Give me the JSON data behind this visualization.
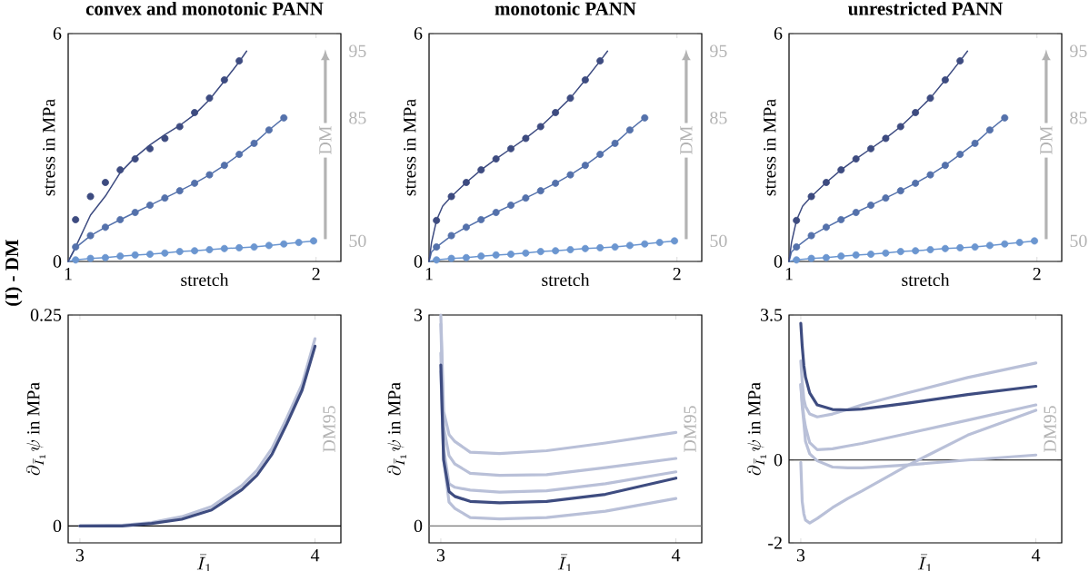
{
  "chart_data": [
    {
      "type": "line",
      "title": "convex and monotonic PANN",
      "xlabel": "stretch",
      "ylabel": "stress in MPa",
      "xlim": [
        1,
        2.1
      ],
      "xticks": [
        1,
        2
      ],
      "ylim": [
        0,
        6
      ],
      "yticks": [
        0,
        6
      ],
      "annotations": [
        "(I) - DM",
        "DM"
      ],
      "series": [
        {
          "type": "line",
          "name": "50",
          "color": "#6b96d0",
          "x": [
            1,
            1.03,
            1.09,
            1.15,
            1.21,
            1.27,
            1.33,
            1.39,
            1.45,
            1.51,
            1.57,
            1.63,
            1.69,
            1.75,
            1.81,
            1.87,
            1.93,
            1.99
          ],
          "values": [
            0,
            0.04,
            0.08,
            0.1,
            0.14,
            0.17,
            0.19,
            0.22,
            0.26,
            0.28,
            0.31,
            0.34,
            0.36,
            0.38,
            0.42,
            0.46,
            0.5,
            0.54
          ]
        },
        {
          "type": "scatter",
          "color": "#6b96d0",
          "x": [
            1.03,
            1.09,
            1.15,
            1.21,
            1.27,
            1.33,
            1.39,
            1.45,
            1.51,
            1.57,
            1.63,
            1.69,
            1.75,
            1.81,
            1.87,
            1.93,
            1.99
          ],
          "values": [
            0.04,
            0.08,
            0.1,
            0.14,
            0.17,
            0.19,
            0.22,
            0.26,
            0.28,
            0.31,
            0.34,
            0.36,
            0.38,
            0.42,
            0.46,
            0.5,
            0.54
          ]
        },
        {
          "type": "line",
          "name": "85",
          "color": "#5471ab",
          "x": [
            1,
            1.03,
            1.09,
            1.15,
            1.21,
            1.27,
            1.33,
            1.39,
            1.45,
            1.51,
            1.57,
            1.63,
            1.69,
            1.75,
            1.81,
            1.87
          ],
          "values": [
            0,
            0.36,
            0.68,
            0.9,
            1.1,
            1.29,
            1.48,
            1.67,
            1.86,
            2.06,
            2.28,
            2.53,
            2.82,
            3.11,
            3.46,
            3.78
          ]
        },
        {
          "type": "scatter",
          "color": "#5471ab",
          "x": [
            1.03,
            1.09,
            1.15,
            1.21,
            1.27,
            1.33,
            1.39,
            1.45,
            1.51,
            1.57,
            1.63,
            1.69,
            1.75,
            1.81,
            1.87
          ],
          "values": [
            0.38,
            0.68,
            0.9,
            1.1,
            1.29,
            1.48,
            1.67,
            1.86,
            2.06,
            2.28,
            2.53,
            2.82,
            3.11,
            3.46,
            3.78
          ]
        },
        {
          "type": "line",
          "name": "95",
          "color": "#3d4b80",
          "x": [
            1,
            1.03,
            1.09,
            1.15,
            1.21,
            1.27,
            1.33,
            1.39,
            1.45,
            1.51,
            1.57,
            1.63,
            1.69,
            1.72
          ],
          "values": [
            0,
            0.38,
            1.22,
            1.72,
            2.34,
            2.74,
            3.07,
            3.34,
            3.58,
            3.87,
            4.26,
            4.75,
            5.26,
            5.54
          ]
        },
        {
          "type": "scatter",
          "color": "#3d4b80",
          "x": [
            1.03,
            1.09,
            1.15,
            1.21,
            1.27,
            1.33,
            1.39,
            1.45,
            1.51,
            1.57,
            1.63,
            1.69
          ],
          "values": [
            1.1,
            1.71,
            2.08,
            2.41,
            2.7,
            2.97,
            3.24,
            3.55,
            3.92,
            4.3,
            4.78,
            5.28
          ]
        }
      ]
    },
    {
      "type": "line",
      "title": "monotonic PANN",
      "xlabel": "stretch",
      "ylabel": "stress in MPa",
      "xlim": [
        1,
        2.1
      ],
      "xticks": [
        1,
        2
      ],
      "ylim": [
        0,
        6
      ],
      "yticks": [
        0,
        6
      ],
      "annotations": [
        "DM"
      ],
      "series": [
        {
          "type": "line",
          "name": "50",
          "color": "#6b96d0",
          "x": [
            1,
            1.03,
            1.09,
            1.15,
            1.21,
            1.27,
            1.33,
            1.39,
            1.45,
            1.51,
            1.57,
            1.63,
            1.69,
            1.75,
            1.81,
            1.87,
            1.93,
            1.99
          ],
          "values": [
            0,
            0.04,
            0.08,
            0.1,
            0.14,
            0.17,
            0.19,
            0.22,
            0.26,
            0.28,
            0.31,
            0.34,
            0.36,
            0.38,
            0.42,
            0.46,
            0.5,
            0.54
          ]
        },
        {
          "type": "scatter",
          "color": "#6b96d0",
          "x": [
            1.03,
            1.09,
            1.15,
            1.21,
            1.27,
            1.33,
            1.39,
            1.45,
            1.51,
            1.57,
            1.63,
            1.69,
            1.75,
            1.81,
            1.87,
            1.93,
            1.99
          ],
          "values": [
            0.04,
            0.08,
            0.1,
            0.14,
            0.17,
            0.19,
            0.22,
            0.26,
            0.28,
            0.31,
            0.34,
            0.36,
            0.38,
            0.42,
            0.46,
            0.5,
            0.54
          ]
        },
        {
          "type": "line",
          "name": "85",
          "color": "#5471ab",
          "x": [
            1,
            1.01,
            1.03,
            1.09,
            1.15,
            1.21,
            1.27,
            1.33,
            1.39,
            1.45,
            1.51,
            1.57,
            1.63,
            1.69,
            1.75,
            1.81,
            1.87
          ],
          "values": [
            0,
            0.25,
            0.38,
            0.68,
            0.9,
            1.1,
            1.29,
            1.48,
            1.67,
            1.86,
            2.06,
            2.28,
            2.53,
            2.82,
            3.11,
            3.46,
            3.78
          ]
        },
        {
          "type": "scatter",
          "color": "#5471ab",
          "x": [
            1.03,
            1.09,
            1.15,
            1.21,
            1.27,
            1.33,
            1.39,
            1.45,
            1.51,
            1.57,
            1.63,
            1.69,
            1.75,
            1.81,
            1.87
          ],
          "values": [
            0.38,
            0.68,
            0.9,
            1.1,
            1.29,
            1.48,
            1.67,
            1.86,
            2.06,
            2.28,
            2.53,
            2.82,
            3.11,
            3.46,
            3.78
          ]
        },
        {
          "type": "line",
          "name": "95",
          "color": "#3d4b80",
          "x": [
            1,
            1.01,
            1.03,
            1.055,
            1.09,
            1.15,
            1.21,
            1.27,
            1.33,
            1.39,
            1.45,
            1.51,
            1.57,
            1.63,
            1.69,
            1.72
          ],
          "values": [
            0,
            0.5,
            1.08,
            1.46,
            1.71,
            2.08,
            2.41,
            2.7,
            2.97,
            3.24,
            3.55,
            3.92,
            4.3,
            4.78,
            5.28,
            5.54
          ]
        },
        {
          "type": "scatter",
          "color": "#3d4b80",
          "x": [
            1.03,
            1.09,
            1.15,
            1.21,
            1.27,
            1.33,
            1.39,
            1.45,
            1.51,
            1.57,
            1.63,
            1.69
          ],
          "values": [
            1.08,
            1.71,
            2.08,
            2.41,
            2.7,
            2.97,
            3.24,
            3.55,
            3.92,
            4.3,
            4.78,
            5.28
          ]
        }
      ]
    },
    {
      "type": "line",
      "title": "unrestricted PANN",
      "xlabel": "stretch",
      "ylabel": "stress in MPa",
      "xlim": [
        1,
        2.1
      ],
      "xticks": [
        1,
        2
      ],
      "ylim": [
        0,
        6
      ],
      "yticks": [
        0,
        6
      ],
      "annotations": [
        "DM"
      ],
      "series": [
        {
          "type": "line",
          "name": "50",
          "color": "#6b96d0",
          "x": [
            1,
            1.03,
            1.09,
            1.15,
            1.21,
            1.27,
            1.33,
            1.39,
            1.45,
            1.51,
            1.57,
            1.63,
            1.69,
            1.75,
            1.81,
            1.87,
            1.93,
            1.99
          ],
          "values": [
            0,
            0.04,
            0.08,
            0.1,
            0.14,
            0.17,
            0.19,
            0.22,
            0.26,
            0.28,
            0.31,
            0.34,
            0.36,
            0.38,
            0.42,
            0.46,
            0.5,
            0.54
          ]
        },
        {
          "type": "scatter",
          "color": "#6b96d0",
          "x": [
            1.03,
            1.09,
            1.15,
            1.21,
            1.27,
            1.33,
            1.39,
            1.45,
            1.51,
            1.57,
            1.63,
            1.69,
            1.75,
            1.81,
            1.87,
            1.93,
            1.99
          ],
          "values": [
            0.04,
            0.08,
            0.1,
            0.14,
            0.17,
            0.19,
            0.22,
            0.26,
            0.28,
            0.31,
            0.34,
            0.36,
            0.38,
            0.42,
            0.46,
            0.5,
            0.54
          ]
        },
        {
          "type": "line",
          "name": "85",
          "color": "#5471ab",
          "x": [
            1,
            1.01,
            1.03,
            1.09,
            1.15,
            1.21,
            1.27,
            1.33,
            1.39,
            1.45,
            1.51,
            1.57,
            1.63,
            1.69,
            1.75,
            1.81,
            1.87
          ],
          "values": [
            0,
            0.25,
            0.38,
            0.68,
            0.9,
            1.1,
            1.29,
            1.48,
            1.67,
            1.86,
            2.06,
            2.28,
            2.53,
            2.82,
            3.11,
            3.46,
            3.78
          ]
        },
        {
          "type": "scatter",
          "color": "#5471ab",
          "x": [
            1.03,
            1.09,
            1.15,
            1.21,
            1.27,
            1.33,
            1.39,
            1.45,
            1.51,
            1.57,
            1.63,
            1.69,
            1.75,
            1.81,
            1.87
          ],
          "values": [
            0.38,
            0.68,
            0.9,
            1.1,
            1.29,
            1.48,
            1.67,
            1.86,
            2.06,
            2.28,
            2.53,
            2.82,
            3.11,
            3.46,
            3.78
          ]
        },
        {
          "type": "line",
          "name": "95",
          "color": "#3d4b80",
          "x": [
            1,
            1.01,
            1.03,
            1.055,
            1.09,
            1.15,
            1.21,
            1.27,
            1.33,
            1.39,
            1.45,
            1.51,
            1.57,
            1.63,
            1.69,
            1.72
          ],
          "values": [
            0,
            0.5,
            1.08,
            1.46,
            1.71,
            2.08,
            2.41,
            2.7,
            2.97,
            3.24,
            3.55,
            3.92,
            4.3,
            4.78,
            5.28,
            5.54
          ]
        },
        {
          "type": "scatter",
          "color": "#3d4b80",
          "x": [
            1.03,
            1.09,
            1.15,
            1.21,
            1.27,
            1.33,
            1.39,
            1.45,
            1.51,
            1.57,
            1.63,
            1.69
          ],
          "values": [
            1.08,
            1.71,
            2.08,
            2.41,
            2.7,
            2.97,
            3.24,
            3.55,
            3.92,
            4.3,
            4.78,
            5.28
          ]
        }
      ]
    },
    {
      "type": "line",
      "xlabel": "\\bar{I}_1",
      "ylabel": "\\partial_{\\bar{I}_1}\\psi\\ \\mathrm{in\\ MPa}",
      "xlim": [
        2.95,
        4.11
      ],
      "xticks": [
        3,
        4
      ],
      "ylim": [
        -0.02,
        0.25
      ],
      "yticks": [
        0,
        0.25
      ],
      "ref_lines": [
        {
          "axis": "y",
          "value": 0,
          "color": "#000000"
        }
      ],
      "annotations": [
        "DM95"
      ],
      "series": [
        {
          "color": "#b9c0d8",
          "x": [
            3.0,
            3.18,
            3.305,
            3.433,
            3.56,
            3.689,
            3.753,
            3.817,
            3.88,
            3.945,
            4.0
          ],
          "values": [
            0,
            0.001,
            0.004,
            0.011,
            0.023,
            0.048,
            0.066,
            0.092,
            0.128,
            0.168,
            0.222
          ]
        },
        {
          "color": "#3e4c80",
          "x": [
            3.0,
            3.18,
            3.305,
            3.433,
            3.56,
            3.689,
            3.753,
            3.817,
            3.88,
            3.945,
            4.0
          ],
          "values": [
            0,
            0,
            0.003,
            0.008,
            0.019,
            0.043,
            0.06,
            0.085,
            0.121,
            0.161,
            0.213
          ]
        }
      ]
    },
    {
      "type": "line",
      "xlabel": "\\bar{I}_1",
      "ylabel": "\\partial_{\\bar{I}_1}\\psi\\ \\mathrm{in\\ MPa}",
      "xlim": [
        2.95,
        4.11
      ],
      "xticks": [
        3,
        4
      ],
      "ylim": [
        -0.24,
        3
      ],
      "yticks": [
        0,
        3
      ],
      "ref_lines": [
        {
          "axis": "y",
          "value": 0,
          "color": "#777777"
        }
      ],
      "annotations": [
        "DM95"
      ],
      "series": [
        {
          "color": "#b9c0d8",
          "x": [
            3.0,
            3.012,
            3.035,
            3.06,
            3.125,
            3.25,
            3.45,
            3.7,
            4.0
          ],
          "values": [
            3.0,
            1.63,
            1.3,
            1.2,
            1.05,
            1.03,
            1.07,
            1.18,
            1.33
          ]
        },
        {
          "color": "#b9c0d8",
          "x": [
            3.0,
            3.012,
            3.035,
            3.06,
            3.125,
            3.25,
            3.45,
            3.7,
            4.0
          ],
          "values": [
            2.87,
            1.41,
            1.0,
            0.88,
            0.75,
            0.72,
            0.73,
            0.83,
            0.96
          ]
        },
        {
          "color": "#b9c0d8",
          "x": [
            3.0,
            3.012,
            3.035,
            3.06,
            3.125,
            3.25,
            3.45,
            3.7,
            4.0
          ],
          "values": [
            2.46,
            1.1,
            0.6,
            0.55,
            0.51,
            0.48,
            0.5,
            0.6,
            0.77
          ]
        },
        {
          "color": "#b9c0d8",
          "x": [
            3.0,
            3.012,
            3.035,
            3.06,
            3.125,
            3.25,
            3.45,
            3.7,
            4.0
          ],
          "values": [
            2.2,
            0.95,
            0.34,
            0.25,
            0.12,
            0.1,
            0.12,
            0.21,
            0.39
          ]
        },
        {
          "color": "#3e4c80",
          "x": [
            3.0,
            3.012,
            3.035,
            3.06,
            3.125,
            3.25,
            3.45,
            3.7,
            4.0
          ],
          "values": [
            2.29,
            0.94,
            0.49,
            0.42,
            0.35,
            0.33,
            0.35,
            0.45,
            0.68
          ]
        }
      ]
    },
    {
      "type": "line",
      "xlabel": "\\bar{I}_1",
      "ylabel": "\\partial_{\\bar{I}_1}\\psi\\ \\mathrm{in\\ MPa}",
      "xlim": [
        2.95,
        4.11
      ],
      "xticks": [
        3,
        4
      ],
      "ylim": [
        -2,
        3.5
      ],
      "yticks": [
        -2,
        0,
        3.5
      ],
      "ref_lines": [
        {
          "axis": "y",
          "value": 0,
          "color": "#000000"
        }
      ],
      "annotations": [
        "DM95"
      ],
      "series": [
        {
          "color": "#b9c0d8",
          "x": [
            3.0,
            3.006,
            3.013,
            3.02,
            3.038,
            3.07,
            3.135,
            3.2,
            3.26,
            3.455,
            3.71,
            4.0
          ],
          "values": [
            2.39,
            1.9,
            1.47,
            1.3,
            1.11,
            1.04,
            1.11,
            1.22,
            1.33,
            1.62,
            1.99,
            2.34
          ]
        },
        {
          "color": "#b9c0d8",
          "x": [
            3.0,
            3.006,
            3.013,
            3.02,
            3.038,
            3.07,
            3.135,
            3.2,
            3.26,
            3.455,
            3.71,
            4.0
          ],
          "values": [
            1.82,
            1.4,
            1.04,
            0.8,
            0.42,
            0.25,
            0.27,
            0.34,
            0.4,
            0.64,
            0.96,
            1.33
          ]
        },
        {
          "color": "#b9c0d8",
          "x": [
            3.0,
            3.006,
            3.013,
            3.02,
            3.038,
            3.07,
            3.135,
            3.2,
            3.26,
            3.455,
            3.71,
            4.0
          ],
          "values": [
            1.82,
            1.3,
            0.9,
            0.45,
            0.15,
            -0.02,
            -0.17,
            -0.19,
            -0.19,
            -0.12,
            0.0,
            0.12
          ]
        },
        {
          "color": "#b9c0d8",
          "x": [
            3.0,
            3.006,
            3.013,
            3.02,
            3.038,
            3.07,
            3.135,
            3.2,
            3.26,
            3.455,
            3.71,
            4.0
          ],
          "values": [
            -0.06,
            -1.0,
            -1.3,
            -1.45,
            -1.52,
            -1.41,
            -1.15,
            -0.93,
            -0.75,
            -0.13,
            0.6,
            1.2
          ]
        },
        {
          "color": "#3e4c80",
          "x": [
            3.0,
            3.006,
            3.013,
            3.02,
            3.038,
            3.07,
            3.135,
            3.2,
            3.26,
            3.455,
            3.71,
            4.0
          ],
          "values": [
            3.3,
            2.75,
            2.28,
            2.0,
            1.62,
            1.33,
            1.22,
            1.21,
            1.23,
            1.37,
            1.58,
            1.78
          ]
        }
      ]
    }
  ]
}
